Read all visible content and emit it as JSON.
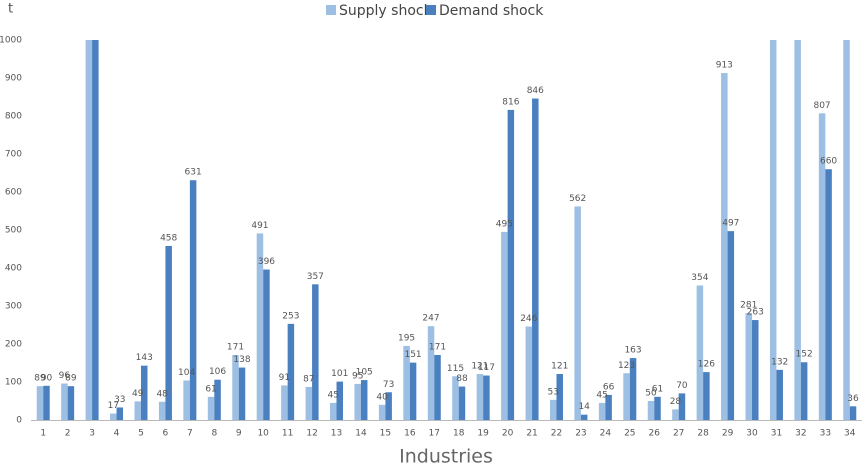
{
  "chart_data": {
    "type": "bar",
    "y_unit": "t",
    "x_label": "Industries",
    "categories": [
      "1",
      "2",
      "3",
      "4",
      "5",
      "6",
      "7",
      "8",
      "9",
      "10",
      "11",
      "12",
      "13",
      "14",
      "15",
      "16",
      "17",
      "18",
      "19",
      "20",
      "21",
      "22",
      "23",
      "24",
      "25",
      "26",
      "27",
      "28",
      "29",
      "30",
      "31",
      "32",
      "33",
      "34"
    ],
    "series": [
      {
        "name": "Supply shock",
        "color": "#9dbfe3",
        "values": [
          89,
          96,
          1000,
          17,
          49,
          48,
          104,
          61,
          171,
          491,
          91,
          87,
          45,
          95,
          40,
          195,
          247,
          115,
          121,
          495,
          246,
          53,
          562,
          45,
          123,
          50,
          28,
          354,
          913,
          281,
          1000,
          1000,
          807,
          1000
        ]
      },
      {
        "name": "Demand shock",
        "color": "#4a80c0",
        "values": [
          90,
          89,
          1000,
          33,
          143,
          458,
          631,
          106,
          138,
          396,
          253,
          357,
          101,
          105,
          73,
          151,
          171,
          88,
          117,
          816,
          846,
          121,
          14,
          66,
          163,
          61,
          70,
          126,
          497,
          263,
          132,
          152,
          660,
          36
        ]
      }
    ],
    "ylim": [
      0,
      1000
    ],
    "yticks": [
      0,
      100,
      200,
      300,
      400,
      500,
      600,
      700,
      800,
      900,
      1000
    ],
    "grid": false,
    "legend": "top"
  }
}
